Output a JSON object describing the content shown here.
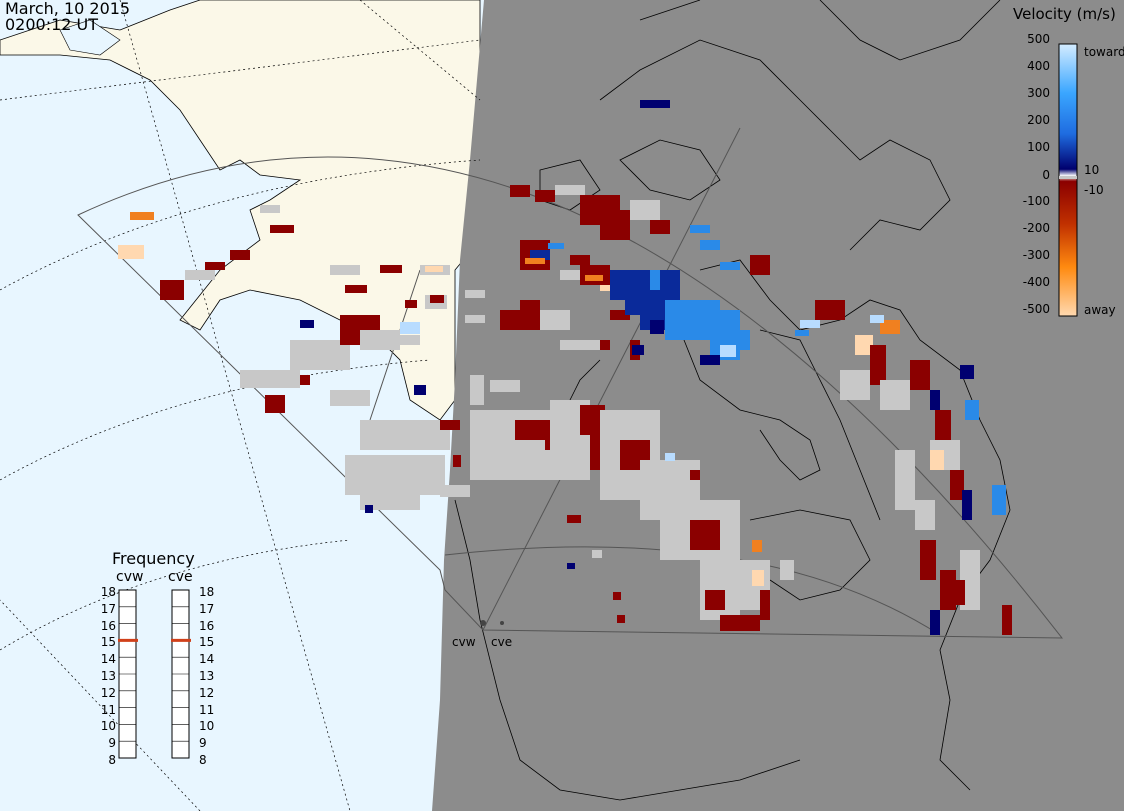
{
  "header": {
    "date": "March, 10 2015",
    "time": "0200:12 UT"
  },
  "colorbar": {
    "title": "Velocity (m/s)",
    "toward_label": "toward",
    "away_label": "away",
    "ticks": [
      "500",
      "400",
      "300",
      "200",
      "100",
      "10",
      "0",
      "-10",
      "-100",
      "-200",
      "-300",
      "-400",
      "-500"
    ],
    "colors": {
      "toward_max": "#d4ecff",
      "toward_mid": "#1f8ff0",
      "toward_min": "#00006e",
      "away_min": "#8b0000",
      "away_mid": "#e05a00",
      "away_max": "#ffd9b0",
      "ground_scatter": "#c8c8c8"
    }
  },
  "frequency_panel": {
    "title": "Frequency",
    "radars": [
      {
        "name": "cvw",
        "freq_mhz": 15
      },
      {
        "name": "cve",
        "freq_mhz": 15
      }
    ],
    "scale": [
      "18",
      "17",
      "16",
      "15",
      "14",
      "13",
      "12",
      "11",
      "10",
      "9",
      "8"
    ]
  },
  "radar_sites": [
    {
      "name": "cvw",
      "label": "cvw"
    },
    {
      "name": "cve",
      "label": "cve"
    }
  ],
  "map": {
    "night_color": "#8c8c8c",
    "ocean_color": "#e8f6ff",
    "land_color": "#fbf8e8",
    "grid_style": "dotted"
  }
}
